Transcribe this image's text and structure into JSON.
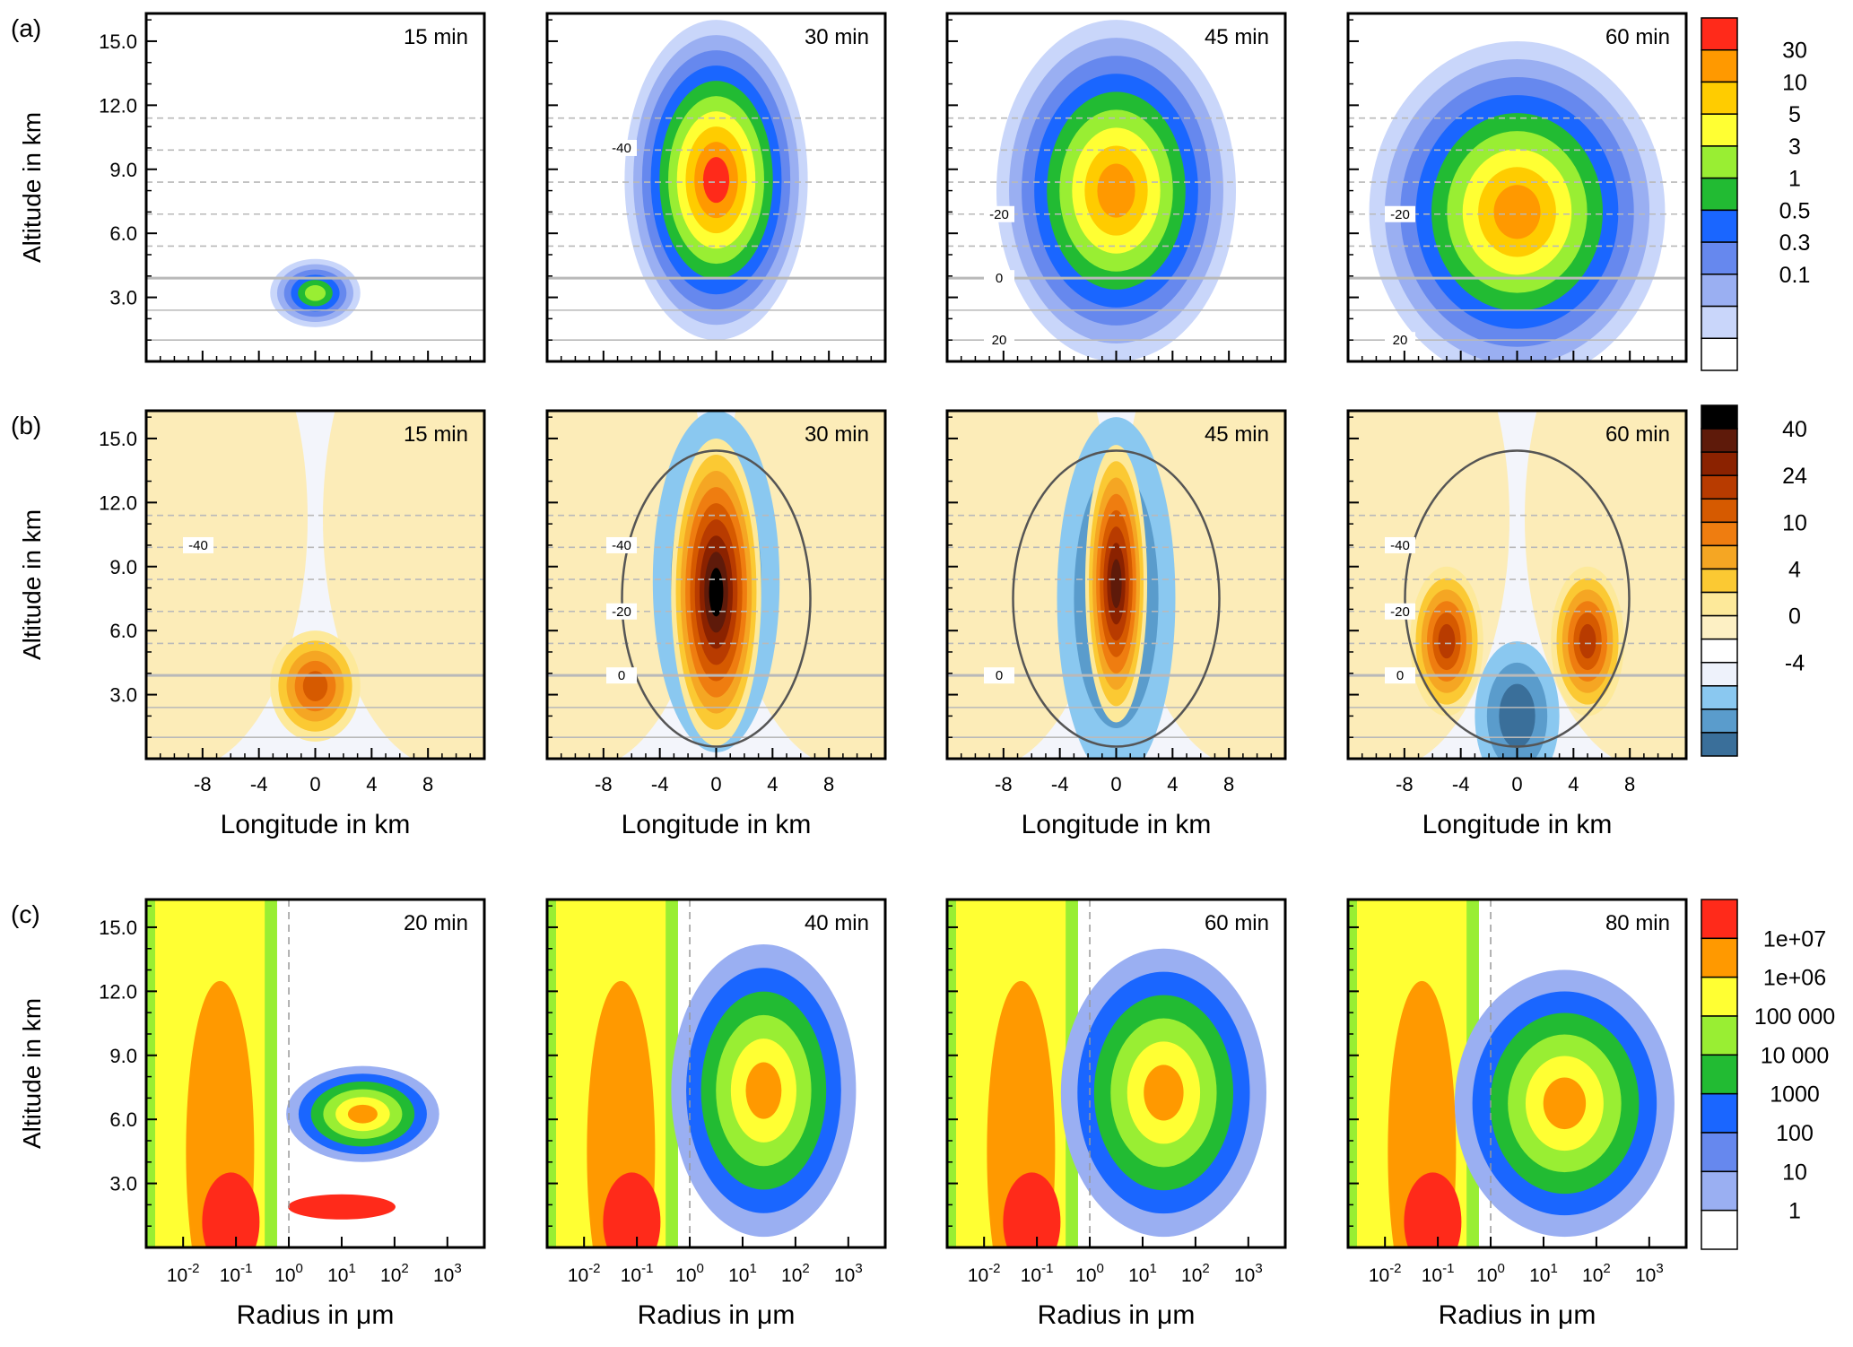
{
  "figure": {
    "row_labels": [
      "(a)",
      "(b)",
      "(c)"
    ]
  },
  "chart_data": [
    {
      "type": "heatmap",
      "row": "(a)",
      "panel_times": [
        "15 min",
        "30 min",
        "45 min",
        "60 min"
      ],
      "ylabel": "Altitude in km",
      "xlabel": "",
      "y_ticks": [
        "3.0",
        "6.0",
        "9.0",
        "12.0",
        "15.0"
      ],
      "x_range": [
        -12,
        12
      ],
      "ylim": [
        0,
        16.3
      ],
      "colorbar_labels": [
        "30",
        "10",
        "5",
        "3",
        "1",
        "0.5",
        "0.3",
        "0.1"
      ],
      "colorbar_colors": [
        "#ff2a1a",
        "#ff9900",
        "#ffcc00",
        "#ffff33",
        "#99ee33",
        "#22bb33",
        "#1a66ff",
        "#6688ee",
        "#9aaff2",
        "#c9d6fa",
        "#ffffff"
      ],
      "temperature_contour_labels": [
        "-40",
        "-20",
        "0",
        "20"
      ],
      "panels": [
        {
          "time": "15 min",
          "cx": 0,
          "cy": 3.2,
          "sx": 3.2,
          "sy": 1.6,
          "peak": 4.5
        },
        {
          "time": "30 min",
          "cx": 0,
          "cy": 8.5,
          "sx": 6.5,
          "sy": 7.5,
          "peak": 40
        },
        {
          "time": "45 min",
          "cx": 0,
          "cy": 8.0,
          "sx": 8.5,
          "sy": 8.0,
          "peak": 15
        },
        {
          "time": "60 min",
          "cx": 0,
          "cy": 7.0,
          "sx": 10.5,
          "sy": 8.0,
          "peak": 10
        }
      ]
    },
    {
      "type": "heatmap",
      "row": "(b)",
      "panel_times": [
        "15 min",
        "30 min",
        "45 min",
        "60 min"
      ],
      "ylabel": "Altitude in km",
      "xlabel": "Longitude in km",
      "x_ticks": [
        "-8",
        "-4",
        "0",
        "4",
        "8"
      ],
      "y_ticks": [
        "3.0",
        "6.0",
        "9.0",
        "12.0",
        "15.0"
      ],
      "x_range": [
        -12,
        12
      ],
      "ylim": [
        0,
        16.3
      ],
      "colorbar_labels": [
        "40",
        "24",
        "10",
        "4",
        "0",
        "-4"
      ],
      "colorbar_colors": [
        "#000000",
        "#5e1a0a",
        "#8b2200",
        "#b83b00",
        "#d65a00",
        "#ef7d10",
        "#f5a623",
        "#fbc933",
        "#fde99a",
        "#fdf0c4",
        "#ffffff",
        "#eef2fb",
        "#8ac8f0",
        "#5a9ccc",
        "#3a6f9a"
      ],
      "temperature_contour_labels": [
        "-40",
        "-20",
        "0"
      ],
      "panels": [
        {
          "time": "15 min"
        },
        {
          "time": "30 min"
        },
        {
          "time": "45 min"
        },
        {
          "time": "60 min"
        }
      ]
    },
    {
      "type": "heatmap",
      "row": "(c)",
      "panel_times": [
        "20 min",
        "40 min",
        "60 min",
        "80 min"
      ],
      "ylabel": "Altitude in km",
      "xlabel": "Radius  in μm",
      "xlabel_alt": "Radius in μm",
      "x_scale": "log",
      "x_range": [
        0.002,
        5000
      ],
      "x_tick_values": [
        0.01,
        0.1,
        1,
        10,
        100,
        1000
      ],
      "x_ticks_base": [
        "10",
        "10",
        "10",
        "10",
        "10",
        "10"
      ],
      "x_ticks_exp": [
        "-2",
        "-1",
        "0",
        "1",
        "2",
        "3"
      ],
      "y_ticks": [
        "3.0",
        "6.0",
        "9.0",
        "12.0",
        "15.0"
      ],
      "ylim": [
        0,
        16.3
      ],
      "colorbar_labels": [
        "1e+07",
        "1e+06",
        "100 000",
        "10 000",
        "1000",
        "100",
        "10",
        "1"
      ],
      "colorbar_colors": [
        "#ff2a1a",
        "#ff9900",
        "#ffff33",
        "#99ee33",
        "#22bb33",
        "#1a66ff",
        "#6688ee",
        "#9aaff2",
        "#ffffff"
      ],
      "panels": [
        {
          "time": "20 min"
        },
        {
          "time": "40 min"
        },
        {
          "time": "60 min"
        },
        {
          "time": "80 min"
        }
      ]
    }
  ]
}
